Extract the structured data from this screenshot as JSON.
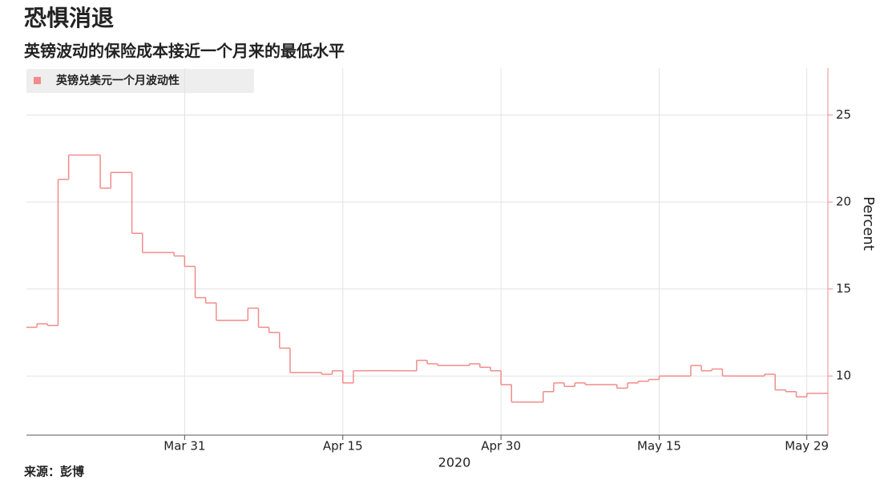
{
  "chart_data": {
    "type": "line",
    "step": true,
    "title": "恐惧消退",
    "subtitle": "英镑波动的保险成本接近一个月来的最低水平",
    "source": "来源：彭博",
    "xlabel": "2020",
    "ylabel": "Percent",
    "legend": "top-left",
    "grid": true,
    "x": [
      "2020-03-16",
      "2020-03-17",
      "2020-03-18",
      "2020-03-19",
      "2020-03-20",
      "2020-03-23",
      "2020-03-24",
      "2020-03-25",
      "2020-03-26",
      "2020-03-27",
      "2020-03-30",
      "2020-03-31",
      "2020-04-01",
      "2020-04-02",
      "2020-04-03",
      "2020-04-06",
      "2020-04-07",
      "2020-04-08",
      "2020-04-09",
      "2020-04-10",
      "2020-04-13",
      "2020-04-14",
      "2020-04-15",
      "2020-04-16",
      "2020-04-17",
      "2020-04-20",
      "2020-04-21",
      "2020-04-22",
      "2020-04-23",
      "2020-04-24",
      "2020-04-27",
      "2020-04-28",
      "2020-04-29",
      "2020-04-30",
      "2020-05-01",
      "2020-05-04",
      "2020-05-05",
      "2020-05-06",
      "2020-05-07",
      "2020-05-08",
      "2020-05-11",
      "2020-05-12",
      "2020-05-13",
      "2020-05-14",
      "2020-05-15",
      "2020-05-18",
      "2020-05-19",
      "2020-05-20",
      "2020-05-21",
      "2020-05-22",
      "2020-05-25",
      "2020-05-26",
      "2020-05-27",
      "2020-05-28",
      "2020-05-29"
    ],
    "series": [
      {
        "name": "英镑兑美元一个月波动性",
        "color": "#f28b8b",
        "values": [
          12.8,
          13.0,
          12.9,
          21.3,
          22.7,
          20.8,
          21.7,
          21.7,
          18.2,
          17.1,
          16.9,
          16.3,
          14.5,
          14.2,
          13.2,
          13.9,
          12.8,
          12.5,
          11.6,
          10.2,
          10.1,
          10.3,
          9.6,
          10.3,
          10.3,
          10.3,
          10.3,
          10.9,
          10.7,
          10.6,
          10.7,
          10.5,
          10.3,
          9.5,
          8.5,
          9.1,
          9.6,
          9.4,
          9.6,
          9.5,
          9.3,
          9.6,
          9.7,
          9.8,
          10.0,
          10.6,
          10.3,
          10.4,
          10.0,
          10.0,
          10.1,
          9.2,
          9.1,
          8.8,
          9.0
        ]
      }
    ],
    "xlim": [
      "2020-03-16",
      "2020-05-31"
    ],
    "xticks": [
      {
        "value": "2020-03-31",
        "label": "Mar 31"
      },
      {
        "value": "2020-04-15",
        "label": "Apr 15"
      },
      {
        "value": "2020-04-30",
        "label": "Apr 30"
      },
      {
        "value": "2020-05-15",
        "label": "May 15"
      },
      {
        "value": "2020-05-29",
        "label": "May 29"
      }
    ],
    "ylim": [
      6.6,
      27.7
    ],
    "yticks": [
      10,
      15,
      20,
      25
    ]
  }
}
